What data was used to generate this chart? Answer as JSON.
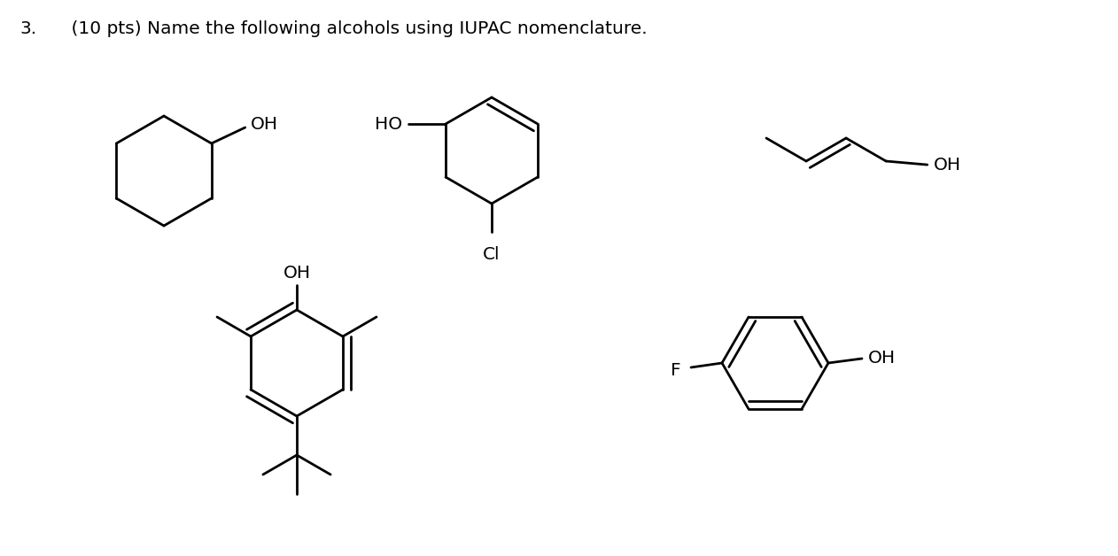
{
  "bg_color": "#ffffff",
  "line_color": "#000000",
  "line_width": 2.0,
  "font_size": 14.5,
  "title_num": "3.",
  "title_text": "    (10 pts) Name the following alcohols using IUPAC nomenclature."
}
